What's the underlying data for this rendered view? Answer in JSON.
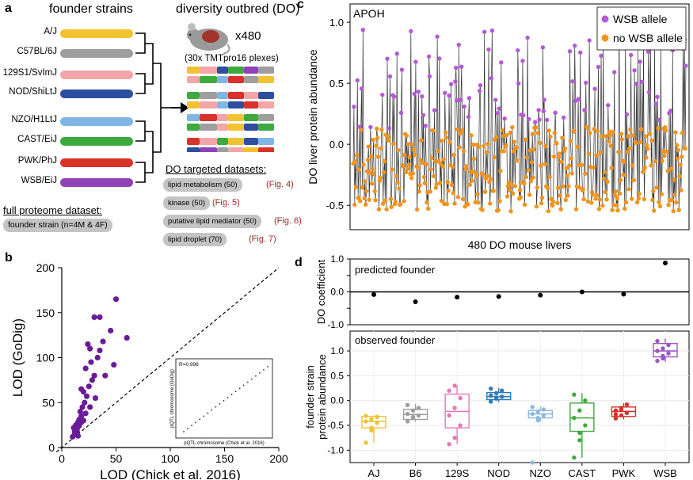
{
  "panels": {
    "a": "a",
    "b": "b",
    "c": "c",
    "d": "d"
  },
  "panel_a": {
    "founder_title": "founder strains",
    "do_title": "diversity outbred (DO)",
    "do_count": "x480",
    "plexes": "(30x TMTpro16 plexes)",
    "strains": [
      {
        "name": "A/J",
        "color": "#f1c232"
      },
      {
        "name": "C57BL/6J",
        "color": "#9e9e9e"
      },
      {
        "name": "129S1/SvImJ",
        "color": "#f4a5a8"
      },
      {
        "name": "NOD/ShiLtJ",
        "color": "#2e4ea0"
      },
      {
        "name": "NZO/H1LtJ",
        "color": "#7fb6e3"
      },
      {
        "name": "CAST/EiJ",
        "color": "#3eaa3e"
      },
      {
        "name": "PWK/PhJ",
        "color": "#d8322b"
      },
      {
        "name": "WSB/EiJ",
        "color": "#8e44b6"
      }
    ],
    "targeted_title": "DO targeted datasets:",
    "targeted": [
      {
        "label": "lipid metabolism (50)",
        "fig": "(Fig. 4)"
      },
      {
        "label": "kinase (50)",
        "fig": "(Fig. 5)"
      },
      {
        "label": "putative lipid mediator (50)",
        "fig": "(Fig. 6)"
      },
      {
        "label": "lipid droplet (70)",
        "fig": "(Fig. 7)"
      }
    ],
    "full_title": "full proteome dataset:",
    "full_item": "founder strain (n=4M & 4F)"
  },
  "panel_b": {
    "xlabel": "LOD (Chick et al. 2016)",
    "ylabel": "LOD (GoDig)",
    "inset_r": "R=0.998",
    "inset_xlabel": "pQTL chromosome (Chick et al. 2016)",
    "inset_ylabel": "pQTL chromosome (GoDig)"
  },
  "panel_c": {
    "protein": "APOH",
    "ylabel": "DO liver protein abundance",
    "xlabel": "480 DO mouse livers",
    "legend": [
      "WSB allele",
      "no WSB allele"
    ],
    "colors": {
      "wsb": "#b45ad6",
      "no_wsb": "#f0941d"
    }
  },
  "panel_d": {
    "top_label": "predicted founder",
    "top_ylabel": "DO coefficient",
    "bottom_label": "observed founder",
    "bottom_ylabel_1": "founder strain",
    "bottom_ylabel_2": "protein abundance",
    "strains": [
      "AJ",
      "B6",
      "129S",
      "NOD",
      "NZO",
      "CAST",
      "PWK",
      "WSB"
    ]
  },
  "chart_data": [
    {
      "type": "scatter",
      "panel": "b",
      "xlabel": "LOD (Chick et al. 2016)",
      "ylabel": "LOD (GoDig)",
      "xlim": [
        0,
        200
      ],
      "ylim": [
        0,
        200
      ],
      "xticks": [
        0,
        50,
        100,
        150,
        200
      ],
      "yticks": [
        0,
        50,
        100,
        150,
        200
      ],
      "reference_line": "y = x (dashed)",
      "color": "#6a1b9a",
      "points": [
        [
          10,
          12
        ],
        [
          12,
          15
        ],
        [
          14,
          18
        ],
        [
          11,
          22
        ],
        [
          13,
          25
        ],
        [
          15,
          28
        ],
        [
          16,
          31
        ],
        [
          18,
          35
        ],
        [
          17,
          40
        ],
        [
          19,
          45
        ],
        [
          21,
          50
        ],
        [
          23,
          57
        ],
        [
          20,
          62
        ],
        [
          25,
          68
        ],
        [
          28,
          75
        ],
        [
          30,
          80
        ],
        [
          22,
          88
        ],
        [
          27,
          95
        ],
        [
          33,
          100
        ],
        [
          35,
          108
        ],
        [
          24,
          115
        ],
        [
          38,
          118
        ],
        [
          45,
          130
        ],
        [
          60,
          122
        ],
        [
          30,
          145
        ],
        [
          35,
          145
        ],
        [
          50,
          165
        ],
        [
          14,
          20
        ],
        [
          16,
          24
        ],
        [
          18,
          28
        ],
        [
          12,
          18
        ],
        [
          15,
          13
        ],
        [
          20,
          30
        ],
        [
          22,
          38
        ],
        [
          26,
          45
        ],
        [
          31,
          55
        ],
        [
          40,
          80
        ],
        [
          48,
          92
        ],
        [
          18,
          65
        ],
        [
          26,
          110
        ]
      ]
    },
    {
      "type": "scatter",
      "panel": "b-inset",
      "title": "R=0.998",
      "xlabel": "pQTL chromosome (Chick et al. 2016)",
      "ylabel": "pQTL chromosome (GoDig)",
      "points_on_diagonal": true
    },
    {
      "type": "line",
      "panel": "c",
      "title": "APOH",
      "xlabel": "480 DO mouse livers",
      "ylabel": "DO liver protein abundance",
      "ylim": [
        -0.7,
        1.15
      ],
      "yticks": [
        -0.5,
        0.0,
        0.5,
        1.0
      ],
      "n": 480,
      "series": [
        {
          "name": "WSB allele",
          "color": "#b45ad6",
          "approx_range": [
            0.1,
            1.1
          ]
        },
        {
          "name": "no WSB allele",
          "color": "#f0941d",
          "approx_range": [
            -0.65,
            0.2
          ]
        }
      ]
    },
    {
      "type": "scatter",
      "panel": "d-top",
      "title": "predicted founder",
      "ylabel": "DO coefficient",
      "ylim": [
        -1.0,
        1.0
      ],
      "yticks": [
        -1.0,
        -0.5,
        0.0,
        0.5,
        1.0
      ],
      "categories": [
        "AJ",
        "B6",
        "129S",
        "NOD",
        "NZO",
        "CAST",
        "PWK",
        "WSB"
      ],
      "values": [
        -0.08,
        -0.3,
        -0.16,
        -0.14,
        -0.1,
        0.0,
        -0.07,
        0.88
      ]
    },
    {
      "type": "box",
      "panel": "d-bottom",
      "title": "observed founder",
      "ylabel": "founder strain protein abundance",
      "ylim": [
        -1.25,
        1.4
      ],
      "yticks": [
        -1.0,
        -0.5,
        0.0,
        0.5,
        1.0
      ],
      "categories": [
        "AJ",
        "B6",
        "129S",
        "NOD",
        "NZO",
        "CAST",
        "PWK",
        "WSB"
      ],
      "colors": [
        "#f1c232",
        "#9e9e9e",
        "#e579b6",
        "#2e7bb6",
        "#8fbbe0",
        "#3eaa3e",
        "#d8322b",
        "#9b57c4"
      ],
      "boxes": [
        {
          "q1": -0.55,
          "median": -0.42,
          "q3": -0.32,
          "min": -0.85,
          "max": -0.3,
          "points": [
            -0.85,
            -0.55,
            -0.45,
            -0.42,
            -0.38,
            -0.33,
            -0.31,
            -0.6
          ]
        },
        {
          "q1": -0.38,
          "median": -0.28,
          "q3": -0.18,
          "min": -0.43,
          "max": -0.07,
          "points": [
            -0.42,
            -0.35,
            -0.3,
            -0.27,
            -0.2,
            -0.15,
            -0.09,
            -0.33
          ]
        },
        {
          "q1": -0.55,
          "median": -0.22,
          "q3": 0.13,
          "min": -0.88,
          "max": 0.3,
          "points": [
            -0.88,
            -0.75,
            -0.5,
            -0.3,
            -0.15,
            0.05,
            0.2,
            0.3
          ]
        },
        {
          "q1": 0.02,
          "median": 0.08,
          "q3": 0.16,
          "min": -0.03,
          "max": 0.25,
          "points": [
            -0.02,
            0.04,
            0.08,
            0.1,
            0.15,
            0.2,
            0.24,
            0.06
          ]
        },
        {
          "q1": -0.35,
          "median": -0.27,
          "q3": -0.2,
          "min": -0.42,
          "max": -0.12,
          "points": [
            -1.25,
            -0.4,
            -0.3,
            -0.27,
            -0.22,
            -0.18,
            -0.13,
            -0.35
          ]
        },
        {
          "q1": -0.62,
          "median": -0.35,
          "q3": -0.05,
          "min": -1.15,
          "max": 0.15,
          "points": [
            -1.15,
            -0.8,
            -0.5,
            -0.35,
            -0.2,
            0.0,
            0.12,
            -0.65
          ]
        },
        {
          "q1": -0.32,
          "median": -0.22,
          "q3": -0.13,
          "min": -0.38,
          "max": -0.05,
          "points": [
            -0.36,
            -0.3,
            -0.25,
            -0.2,
            -0.15,
            -0.08,
            -0.28,
            -0.18
          ]
        },
        {
          "q1": 0.88,
          "median": 1.0,
          "q3": 1.15,
          "min": 0.78,
          "max": 1.25,
          "points": [
            0.8,
            0.9,
            0.95,
            1.0,
            1.05,
            1.12,
            1.2,
            0.85
          ]
        }
      ]
    }
  ]
}
